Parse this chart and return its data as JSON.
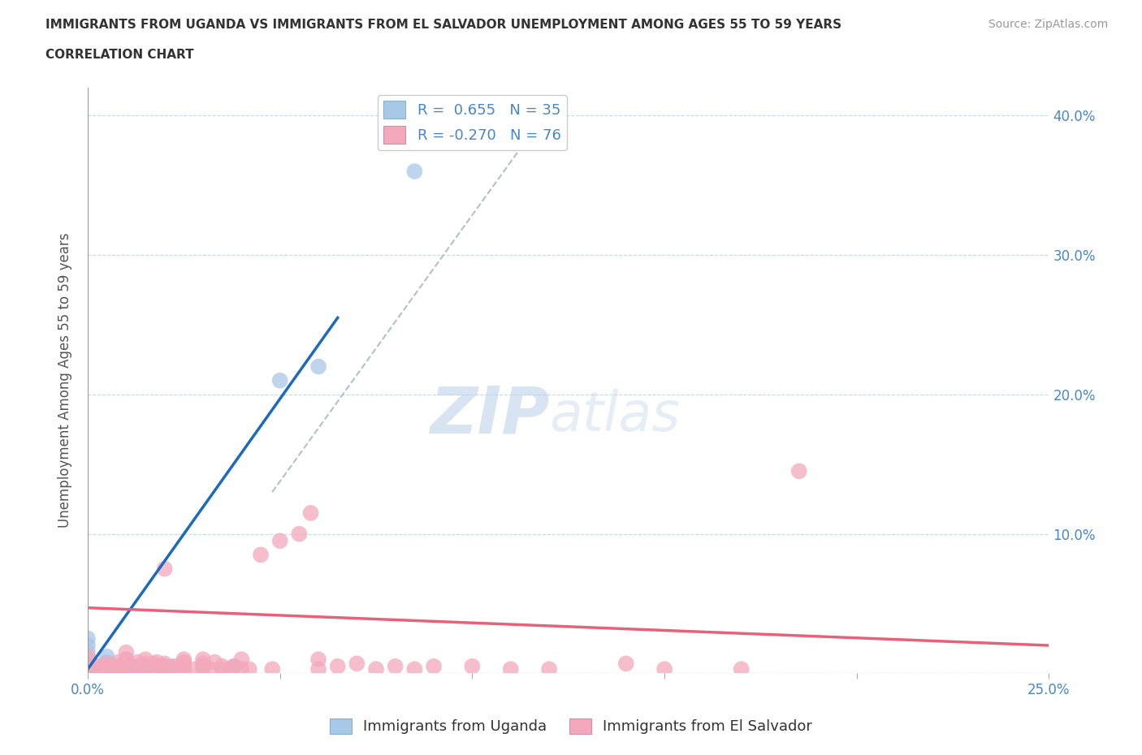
{
  "title_line1": "IMMIGRANTS FROM UGANDA VS IMMIGRANTS FROM EL SALVADOR UNEMPLOYMENT AMONG AGES 55 TO 59 YEARS",
  "title_line2": "CORRELATION CHART",
  "source": "Source: ZipAtlas.com",
  "ylabel": "Unemployment Among Ages 55 to 59 years",
  "xlim": [
    0.0,
    0.25
  ],
  "ylim": [
    0.0,
    0.42
  ],
  "uganda_R": 0.655,
  "uganda_N": 35,
  "salvador_R": -0.27,
  "salvador_N": 76,
  "uganda_color": "#a8c8e8",
  "salvador_color": "#f4a8bc",
  "uganda_line_color": "#1a6abf",
  "salvador_line_color": "#e8607a",
  "ref_line_color": "#b0b8c0",
  "watermark": "ZIPatlas",
  "uganda_x": [
    0.0,
    0.0,
    0.0,
    0.0,
    0.0,
    0.0,
    0.0,
    0.0,
    0.0,
    0.0,
    0.002,
    0.003,
    0.003,
    0.004,
    0.005,
    0.005,
    0.005,
    0.005,
    0.006,
    0.007,
    0.008,
    0.009,
    0.01,
    0.01,
    0.01,
    0.012,
    0.013,
    0.015,
    0.018,
    0.02,
    0.022,
    0.038,
    0.05,
    0.06,
    0.085
  ],
  "uganda_y": [
    0.0,
    0.0,
    0.0,
    0.003,
    0.005,
    0.008,
    0.01,
    0.015,
    0.02,
    0.025,
    0.0,
    0.002,
    0.005,
    0.003,
    0.003,
    0.005,
    0.008,
    0.012,
    0.002,
    0.005,
    0.003,
    0.005,
    0.003,
    0.007,
    0.01,
    0.003,
    0.005,
    0.005,
    0.003,
    0.005,
    0.005,
    0.005,
    0.21,
    0.22,
    0.36
  ],
  "salvador_x": [
    0.0,
    0.0,
    0.0,
    0.002,
    0.003,
    0.004,
    0.005,
    0.005,
    0.005,
    0.005,
    0.007,
    0.008,
    0.008,
    0.009,
    0.01,
    0.01,
    0.01,
    0.01,
    0.01,
    0.012,
    0.013,
    0.013,
    0.014,
    0.015,
    0.015,
    0.015,
    0.016,
    0.017,
    0.018,
    0.018,
    0.019,
    0.02,
    0.02,
    0.02,
    0.02,
    0.022,
    0.023,
    0.025,
    0.025,
    0.025,
    0.025,
    0.025,
    0.028,
    0.03,
    0.03,
    0.03,
    0.03,
    0.032,
    0.033,
    0.035,
    0.035,
    0.037,
    0.038,
    0.04,
    0.04,
    0.042,
    0.045,
    0.048,
    0.05,
    0.055,
    0.058,
    0.06,
    0.06,
    0.065,
    0.07,
    0.075,
    0.08,
    0.085,
    0.09,
    0.1,
    0.11,
    0.12,
    0.14,
    0.15,
    0.17,
    0.185
  ],
  "salvador_y": [
    0.003,
    0.008,
    0.012,
    0.003,
    0.005,
    0.003,
    0.0,
    0.003,
    0.005,
    0.007,
    0.003,
    0.005,
    0.008,
    0.003,
    0.003,
    0.005,
    0.007,
    0.01,
    0.015,
    0.003,
    0.005,
    0.008,
    0.003,
    0.005,
    0.007,
    0.01,
    0.003,
    0.007,
    0.005,
    0.008,
    0.003,
    0.003,
    0.005,
    0.007,
    0.075,
    0.003,
    0.005,
    0.003,
    0.005,
    0.007,
    0.008,
    0.01,
    0.003,
    0.003,
    0.005,
    0.007,
    0.01,
    0.003,
    0.008,
    0.003,
    0.005,
    0.003,
    0.005,
    0.003,
    0.01,
    0.003,
    0.085,
    0.003,
    0.095,
    0.1,
    0.115,
    0.003,
    0.01,
    0.005,
    0.007,
    0.003,
    0.005,
    0.003,
    0.005,
    0.005,
    0.003,
    0.003,
    0.007,
    0.003,
    0.003,
    0.145
  ],
  "uganda_line_x": [
    0.0,
    0.065
  ],
  "uganda_line_y": [
    0.003,
    0.255
  ],
  "salvador_line_x": [
    0.0,
    0.25
  ],
  "salvador_line_y": [
    0.047,
    0.02
  ],
  "ref_line_x": [
    0.048,
    0.12
  ],
  "ref_line_y": [
    0.13,
    0.405
  ]
}
